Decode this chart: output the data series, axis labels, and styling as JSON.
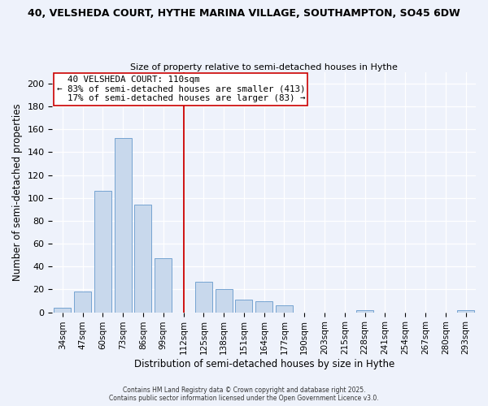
{
  "title_line1": "40, VELSHEDA COURT, HYTHE MARINA VILLAGE, SOUTHAMPTON, SO45 6DW",
  "title_line2": "Size of property relative to semi-detached houses in Hythe",
  "xlabel": "Distribution of semi-detached houses by size in Hythe",
  "ylabel": "Number of semi-detached properties",
  "bar_labels": [
    "34sqm",
    "47sqm",
    "60sqm",
    "73sqm",
    "86sqm",
    "99sqm",
    "112sqm",
    "125sqm",
    "138sqm",
    "151sqm",
    "164sqm",
    "177sqm",
    "190sqm",
    "203sqm",
    "215sqm",
    "228sqm",
    "241sqm",
    "254sqm",
    "267sqm",
    "280sqm",
    "293sqm"
  ],
  "bar_values": [
    4,
    18,
    106,
    152,
    94,
    47,
    0,
    27,
    20,
    11,
    10,
    6,
    0,
    0,
    0,
    2,
    0,
    0,
    0,
    0,
    2
  ],
  "bar_color": "#c8d8ec",
  "bar_edge_color": "#6699cc",
  "vline_x_index": 6,
  "vline_color": "#cc0000",
  "annotation_title": "  40 VELSHEDA COURT: 110sqm",
  "annotation_line1": "← 83% of semi-detached houses are smaller (413)",
  "annotation_line2": "  17% of semi-detached houses are larger (83) →",
  "annotation_box_color": "#ffffff",
  "annotation_box_edge": "#cc0000",
  "ylim": [
    0,
    210
  ],
  "yticks": [
    0,
    20,
    40,
    60,
    80,
    100,
    120,
    140,
    160,
    180,
    200
  ],
  "footer_line1": "Contains HM Land Registry data © Crown copyright and database right 2025.",
  "footer_line2": "Contains public sector information licensed under the Open Government Licence v3.0.",
  "bg_color": "#eef2fb"
}
